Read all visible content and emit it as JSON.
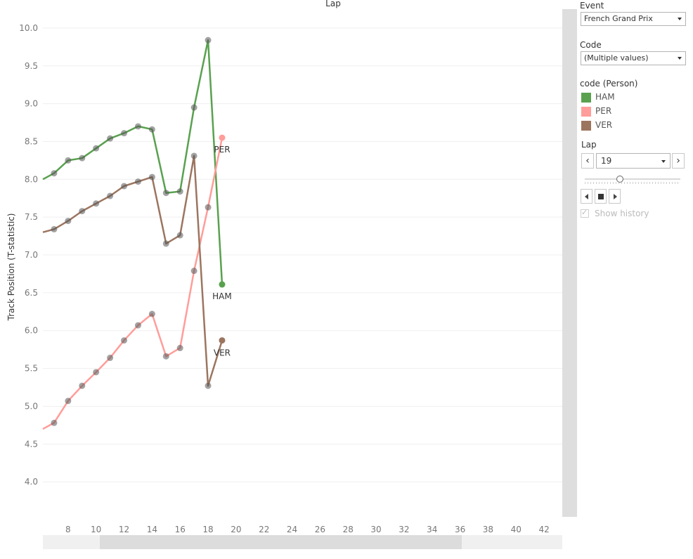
{
  "chart_data": {
    "type": "line",
    "title": "Lap",
    "xlabel": "",
    "ylabel": "Track Position (T-statistic)",
    "xlim": [
      6.2,
      43.3
    ],
    "ylim": [
      3.5,
      10.25
    ],
    "x_ticks": [
      8,
      10,
      12,
      14,
      16,
      18,
      20,
      22,
      24,
      26,
      28,
      30,
      32,
      34,
      36,
      38,
      40,
      42
    ],
    "y_ticks": [
      4.0,
      4.5,
      5.0,
      5.5,
      6.0,
      6.5,
      7.0,
      7.5,
      8.0,
      8.5,
      9.0,
      9.5,
      10.0
    ],
    "grid": true,
    "series": [
      {
        "name": "HAM",
        "color": "#59a14f",
        "end_label": "HAM",
        "x": [
          6.2,
          7,
          8,
          9,
          10,
          11,
          12,
          13,
          14,
          15,
          16,
          17,
          18,
          19
        ],
        "y": [
          8.0,
          8.08,
          8.25,
          8.28,
          8.41,
          8.54,
          8.61,
          8.7,
          8.66,
          7.82,
          7.84,
          8.95,
          9.84,
          6.61
        ]
      },
      {
        "name": "PER",
        "color": "#ff9d9a",
        "end_label": "PER",
        "x": [
          6.2,
          7,
          8,
          9,
          10,
          11,
          12,
          13,
          14,
          15,
          16,
          17,
          18,
          19
        ],
        "y": [
          4.7,
          4.78,
          5.07,
          5.27,
          5.45,
          5.64,
          5.87,
          6.07,
          6.22,
          5.66,
          5.77,
          6.79,
          7.63,
          8.55
        ]
      },
      {
        "name": "VER",
        "color": "#9c755f",
        "end_label": "VER",
        "x": [
          6.2,
          7,
          8,
          9,
          10,
          11,
          12,
          13,
          14,
          15,
          16,
          17,
          18,
          19
        ],
        "y": [
          7.3,
          7.34,
          7.45,
          7.58,
          7.68,
          7.78,
          7.91,
          7.97,
          8.03,
          7.15,
          7.26,
          8.31,
          5.27,
          5.87
        ]
      }
    ]
  },
  "panel": {
    "event": {
      "title": "Event",
      "value": "French Grand Prix"
    },
    "code": {
      "title": "Code",
      "value": "(Multiple values)"
    },
    "legend": {
      "title": "code (Person)",
      "items": [
        {
          "label": "HAM",
          "color": "#59a14f"
        },
        {
          "label": "PER",
          "color": "#ff9d9a"
        },
        {
          "label": "VER",
          "color": "#9c755f"
        }
      ]
    },
    "lap": {
      "title": "Lap",
      "value": "19",
      "prev_glyph": "‹",
      "next_glyph": "›",
      "slider_fraction": 0.37,
      "show_history_label": "Show history",
      "show_history_checked": true
    }
  }
}
